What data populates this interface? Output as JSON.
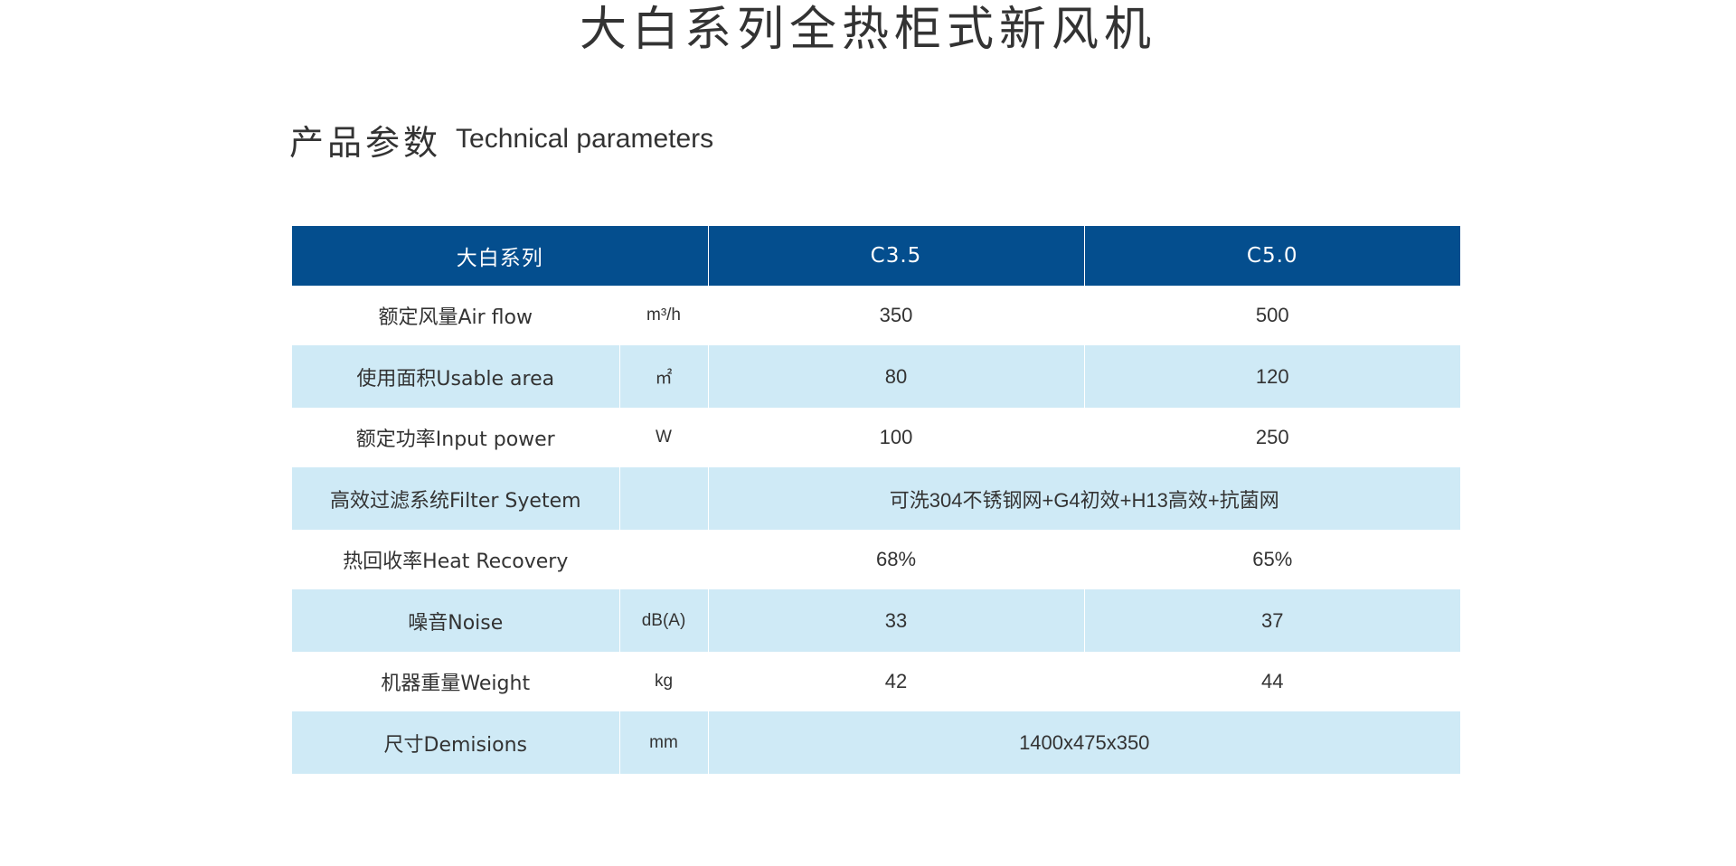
{
  "title": "大白系列全热柜式新风机",
  "section": {
    "cn": "产品参数",
    "en": "Technical parameters"
  },
  "colors": {
    "header_bg": "#044e8e",
    "stripe_bg": "#cfeaf6"
  },
  "table": {
    "headers": {
      "series": "大白系列",
      "model1": "C3.5",
      "model2": "C5.0"
    },
    "rows": [
      {
        "param": "额定风量Air flow",
        "unit": "m³/h",
        "v1": "350",
        "v2": "500"
      },
      {
        "param": "使用面积Usable area",
        "unit": "㎡",
        "v1": "80",
        "v2": "120"
      },
      {
        "param": "额定功率Input power",
        "unit": "W",
        "v1": "100",
        "v2": "250"
      },
      {
        "param": "高效过滤系统Filter Syetem",
        "unit": "",
        "merged": "可洗304不锈钢网+G4初效+H13高效+抗菌网"
      },
      {
        "param": "热回收率Heat Recovery",
        "unit": "",
        "v1": "68%",
        "v2": "65%"
      },
      {
        "param": "噪音Noise",
        "unit": "dB(A)",
        "v1": "33",
        "v2": "37"
      },
      {
        "param": "机器重量Weight",
        "unit": "kg",
        "v1": "42",
        "v2": "44"
      },
      {
        "param": "尺寸Demisions",
        "unit": "mm",
        "merged": "1400x475x350"
      }
    ]
  }
}
